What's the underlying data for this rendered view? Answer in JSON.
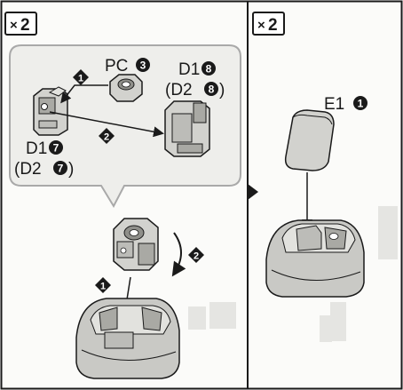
{
  "colors": {
    "ink": "#1a1a1a",
    "paper": "#fbfbf9",
    "callout_fill": "#eeeeeb",
    "callout_border": "#a9a9a9",
    "part_fill": "#d2d2ce",
    "part_shade": "#a9a9a4",
    "base_fill": "#c9c9c5",
    "watermark": "#d4d4d0"
  },
  "icons": {
    "multiplier": "multiplier-badge-icon",
    "step_marker": "diamond-step-icon",
    "continue_arrow": "triangle-right-icon"
  },
  "left_panel": {
    "multiplier_prefix": "×",
    "multiplier_value": "2",
    "callout": {
      "step1": "1",
      "step2": "2",
      "label_pc": "PC",
      "label_pc_num": "3",
      "label_d1_top": "D1",
      "label_d1_top_num": "8",
      "label_d2_top": "(D2",
      "label_d2_top_num": "8",
      "label_d2_top_close": ")",
      "label_d1_bottom": "D1",
      "label_d1_bottom_num": "7",
      "label_d2_bottom": "(D2",
      "label_d2_bottom_num": "7",
      "label_d2_bottom_close": ")"
    },
    "assembly": {
      "step1": "1",
      "step2": "2"
    }
  },
  "right_panel": {
    "multiplier_prefix": "×",
    "multiplier_value": "2",
    "label_e1": "E1",
    "label_e1_num": "1"
  }
}
